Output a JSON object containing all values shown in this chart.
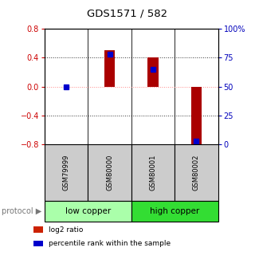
{
  "title": "GDS1571 / 582",
  "samples": [
    "GSM79999",
    "GSM80000",
    "GSM80001",
    "GSM80002"
  ],
  "log2_ratio": [
    0.0,
    0.5,
    0.41,
    -0.8
  ],
  "percentile_rank": [
    50.0,
    78.0,
    65.0,
    3.0
  ],
  "ylim_left": [
    -0.8,
    0.8
  ],
  "ylim_right": [
    0,
    100
  ],
  "left_ticks": [
    -0.8,
    -0.4,
    0.0,
    0.4,
    0.8
  ],
  "right_ticks": [
    0,
    25,
    50,
    75,
    100
  ],
  "right_tick_labels": [
    "0",
    "25",
    "50",
    "75",
    "100%"
  ],
  "groups": [
    {
      "label": "low copper",
      "samples": [
        0,
        1
      ],
      "color": "#aaffaa"
    },
    {
      "label": "high copper",
      "samples": [
        2,
        3
      ],
      "color": "#33dd33"
    }
  ],
  "bar_color": "#aa0000",
  "dot_color": "#0000cc",
  "bar_width": 0.25,
  "left_axis_color": "#cc0000",
  "right_axis_color": "#0000bb",
  "zero_line_color": "#ff8888",
  "grid_color": "#333333",
  "sample_box_color": "#cccccc",
  "legend_items": [
    {
      "color": "#cc2200",
      "label": "log2 ratio"
    },
    {
      "color": "#0000cc",
      "label": "percentile rank within the sample"
    }
  ],
  "fig_width": 3.2,
  "fig_height": 3.45,
  "dpi": 100
}
